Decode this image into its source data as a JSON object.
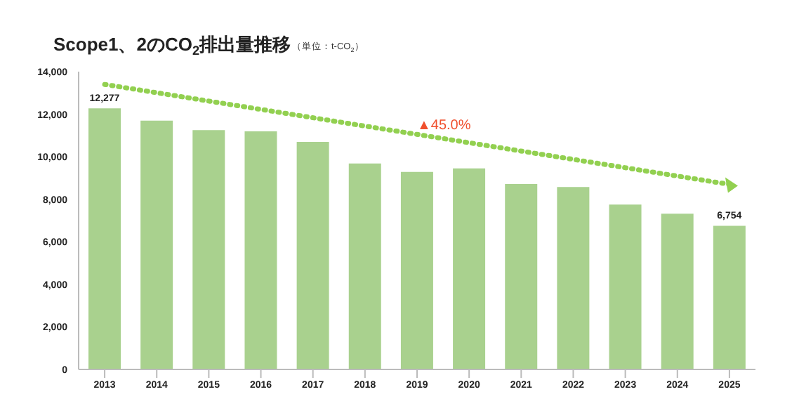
{
  "chart_data": {
    "type": "bar",
    "title": "Scope1、2のCO$_{2}$排出量推移",
    "subtitle": "（単位：t-CO$_{2}$）",
    "categories": [
      "2013",
      "2014",
      "2015",
      "2016",
      "2017",
      "2018",
      "2019",
      "2020",
      "2021",
      "2022",
      "2023",
      "2024",
      "2025"
    ],
    "series": [
      {
        "color": "#a9d18e",
        "values": [
          12277,
          11700,
          11250,
          11190,
          10700,
          9680,
          9290,
          9450,
          8720,
          8580,
          7750,
          7320,
          6754
        ],
        "value_labels": [
          "12,277",
          null,
          null,
          null,
          null,
          null,
          null,
          null,
          null,
          null,
          null,
          null,
          "6,754"
        ]
      },
      {
        "type": "line",
        "color": "#92d050",
        "line_style": "dotted",
        "values": [
          13400,
          null,
          null,
          null,
          null,
          null,
          null,
          null,
          null,
          null,
          null,
          null,
          8700
        ]
      }
    ],
    "annotations": [
      {
        "text": "▲45.0%",
        "x": "2019",
        "y": 11300
      }
    ],
    "ylim": [
      0,
      14000
    ],
    "yticks": [
      {
        "value": 0,
        "label": "0"
      },
      {
        "value": 2000,
        "label": "2,000"
      },
      {
        "value": 4000,
        "label": "4,000"
      },
      {
        "value": 6000,
        "label": "6,000"
      },
      {
        "value": 8000,
        "label": "8,000"
      },
      {
        "value": 10000,
        "label": "10,000"
      },
      {
        "value": 12000,
        "label": "12,000"
      },
      {
        "value": 14000,
        "label": "14,000"
      }
    ],
    "grid": false,
    "legend": false
  }
}
